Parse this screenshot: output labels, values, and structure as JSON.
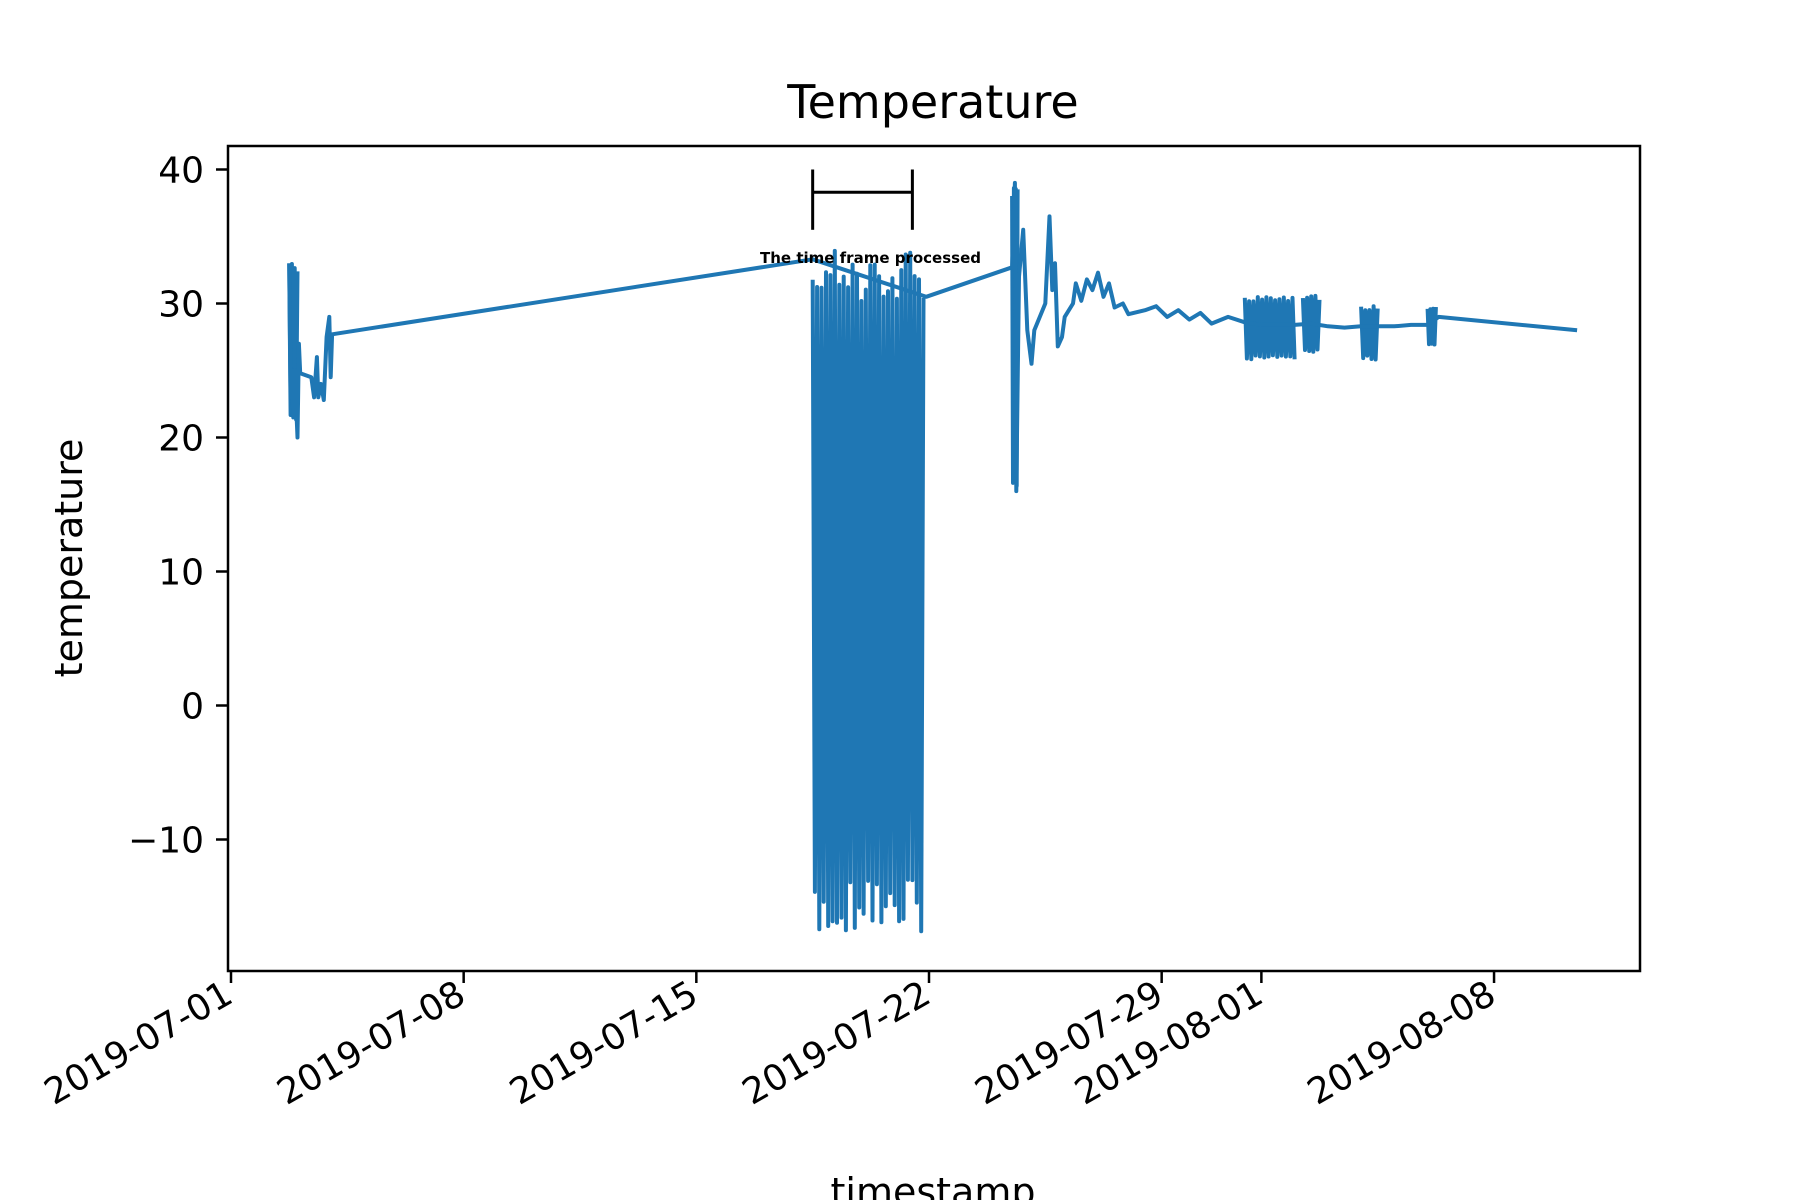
{
  "chart_data": {
    "type": "line",
    "title": "Temperature",
    "xlabel": "timestamp",
    "ylabel": "temperature",
    "x_axis_type": "date",
    "xlim": [
      "2019-07-01",
      "2019-08-12"
    ],
    "ylim": [
      -20,
      42
    ],
    "yticks": [
      40,
      30,
      20,
      10,
      0,
      -10
    ],
    "ytick_labels": [
      "40",
      "30",
      "20",
      "10",
      "0",
      "−10"
    ],
    "xticks": [
      "2019-07-01",
      "2019-07-08",
      "2019-07-15",
      "2019-07-22",
      "2019-07-29",
      "2019-08-01",
      "2019-08-08"
    ],
    "grid": false,
    "legend": "none",
    "series": [
      {
        "color": "#1f77b4",
        "points": [
          [
            "2019-07-02 18:00",
            33.0
          ],
          [
            "2019-07-02 19:00",
            23.0
          ],
          [
            "2019-07-02 20:00",
            25.0
          ],
          [
            "2019-07-02 21:00",
            21.5
          ],
          [
            "2019-07-02 22:00",
            25.0
          ],
          [
            "2019-07-03 00:00",
            20.0
          ],
          [
            "2019-07-03 01:00",
            27.0
          ],
          [
            "2019-07-03 02:00",
            24.8
          ],
          [
            "2019-07-03 10:00",
            24.5
          ],
          [
            "2019-07-03 12:00",
            23.0
          ],
          [
            "2019-07-03 14:00",
            26.0
          ],
          [
            "2019-07-03 15:00",
            23.0
          ],
          [
            "2019-07-03 17:00",
            24.0
          ],
          [
            "2019-07-03 19:00",
            22.8
          ],
          [
            "2019-07-03 21:00",
            27.5
          ],
          [
            "2019-07-03 23:00",
            29.0
          ],
          [
            "2019-07-04 00:00",
            24.5
          ],
          [
            "2019-07-04 01:00",
            27.7
          ],
          [
            "2019-07-18 12:00",
            33.3
          ],
          [
            "2019-07-21 22:00",
            30.5
          ],
          [
            "2019-07-24 12:00",
            32.7
          ],
          [
            "2019-07-24 14:00",
            39.0
          ],
          [
            "2019-07-24 15:00",
            16.0
          ],
          [
            "2019-07-24 17:00",
            32.0
          ],
          [
            "2019-07-24 20:00",
            35.5
          ],
          [
            "2019-07-24 23:00",
            28.0
          ],
          [
            "2019-07-25 02:00",
            25.5
          ],
          [
            "2019-07-25 04:00",
            28.0
          ],
          [
            "2019-07-25 12:00",
            30.0
          ],
          [
            "2019-07-25 15:00",
            36.5
          ],
          [
            "2019-07-25 17:00",
            31.0
          ],
          [
            "2019-07-25 19:00",
            33.0
          ],
          [
            "2019-07-25 21:00",
            26.8
          ],
          [
            "2019-07-26 00:00",
            27.5
          ],
          [
            "2019-07-26 02:00",
            29.0
          ],
          [
            "2019-07-26 08:00",
            30.0
          ],
          [
            "2019-07-26 10:00",
            31.5
          ],
          [
            "2019-07-26 14:00",
            30.2
          ],
          [
            "2019-07-26 18:00",
            31.8
          ],
          [
            "2019-07-26 22:00",
            31.0
          ],
          [
            "2019-07-27 02:00",
            32.3
          ],
          [
            "2019-07-27 06:00",
            30.5
          ],
          [
            "2019-07-27 10:00",
            31.5
          ],
          [
            "2019-07-27 14:00",
            29.7
          ],
          [
            "2019-07-27 20:00",
            30.0
          ],
          [
            "2019-07-28 00:00",
            29.2
          ],
          [
            "2019-07-28 12:00",
            29.5
          ],
          [
            "2019-07-28 20:00",
            29.8
          ],
          [
            "2019-07-29 04:00",
            29.0
          ],
          [
            "2019-07-29 12:00",
            29.5
          ],
          [
            "2019-07-29 20:00",
            28.8
          ],
          [
            "2019-07-30 04:00",
            29.3
          ],
          [
            "2019-07-30 12:00",
            28.5
          ],
          [
            "2019-07-31 00:00",
            29.0
          ],
          [
            "2019-07-31 12:00",
            28.6
          ],
          [
            "2019-08-01 00:00",
            28.4
          ],
          [
            "2019-08-01 12:00",
            28.4
          ],
          [
            "2019-08-02 00:00",
            28.4
          ],
          [
            "2019-08-02 12:00",
            28.5
          ],
          [
            "2019-08-03 00:00",
            28.3
          ],
          [
            "2019-08-03 12:00",
            28.2
          ],
          [
            "2019-08-04 00:00",
            28.3
          ],
          [
            "2019-08-04 12:00",
            28.3
          ],
          [
            "2019-08-05 00:00",
            28.3
          ],
          [
            "2019-08-05 12:00",
            28.4
          ],
          [
            "2019-08-06 00:00",
            28.4
          ],
          [
            "2019-08-06 08:00",
            29.0
          ],
          [
            "2019-08-10 12:00",
            28.0
          ]
        ],
        "dense_bands": [
          {
            "start": "2019-07-02 18:00",
            "end": "2019-07-03 00:00",
            "min": 21.0,
            "max": 33.0
          },
          {
            "start": "2019-07-18 12:00",
            "end": "2019-07-21 20:00",
            "min": -17.0,
            "max": 34.0
          },
          {
            "start": "2019-07-24 12:00",
            "end": "2019-07-24 16:00",
            "min": 16.0,
            "max": 39.0
          },
          {
            "start": "2019-07-31 12:00",
            "end": "2019-08-02 00:00",
            "min": 25.8,
            "max": 30.5
          },
          {
            "start": "2019-08-02 06:00",
            "end": "2019-08-02 18:00",
            "min": 26.3,
            "max": 30.6
          },
          {
            "start": "2019-08-04 00:00",
            "end": "2019-08-04 12:00",
            "min": 25.8,
            "max": 29.8
          },
          {
            "start": "2019-08-06 00:00",
            "end": "2019-08-06 06:00",
            "min": 26.8,
            "max": 29.8
          }
        ]
      }
    ],
    "annotations": [
      {
        "text": "The time frame processed",
        "start": "2019-07-18 12:00",
        "end": "2019-07-21 12:00",
        "y": 38.3,
        "y_top": 40.0,
        "y_bottom": 35.5
      }
    ]
  }
}
